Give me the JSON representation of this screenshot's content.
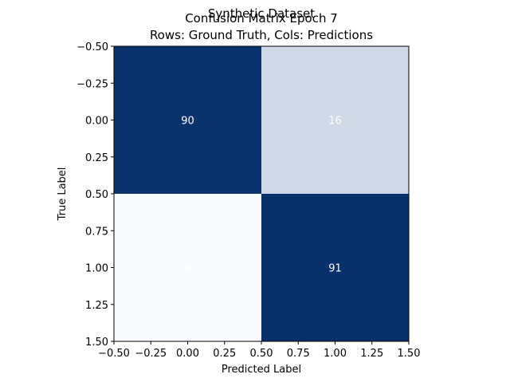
{
  "chart_data": {
    "type": "heatmap",
    "title_lines": [
      "Synthetic Dataset",
      "Confusion Matrix Epoch 7",
      "Rows: Ground Truth, Cols: Predictions"
    ],
    "xlabel": "Predicted Label",
    "ylabel": "True Label",
    "xlim": [
      -0.5,
      1.5
    ],
    "ylim": [
      1.5,
      -0.5
    ],
    "xticks": [
      -0.5,
      -0.25,
      0.0,
      0.25,
      0.5,
      0.75,
      1.0,
      1.25,
      1.5
    ],
    "xtick_labels": [
      "−0.50",
      "−0.25",
      "0.00",
      "0.25",
      "0.50",
      "0.75",
      "1.00",
      "1.25",
      "1.50"
    ],
    "yticks": [
      -0.5,
      -0.25,
      0.0,
      0.25,
      0.5,
      0.75,
      1.0,
      1.25,
      1.5
    ],
    "ytick_labels": [
      "−0.50",
      "−0.25",
      "0.00",
      "0.25",
      "0.50",
      "0.75",
      "1.00",
      "1.25",
      "1.50"
    ],
    "matrix": [
      [
        90,
        16
      ],
      [
        6,
        91
      ]
    ],
    "colormap": "Blues",
    "colors": {
      "cell_dark": "#08306b",
      "cell_light": "#dae8f5",
      "cell_lightest": "#f7fbff",
      "annotation_text": "#ffffff"
    }
  }
}
